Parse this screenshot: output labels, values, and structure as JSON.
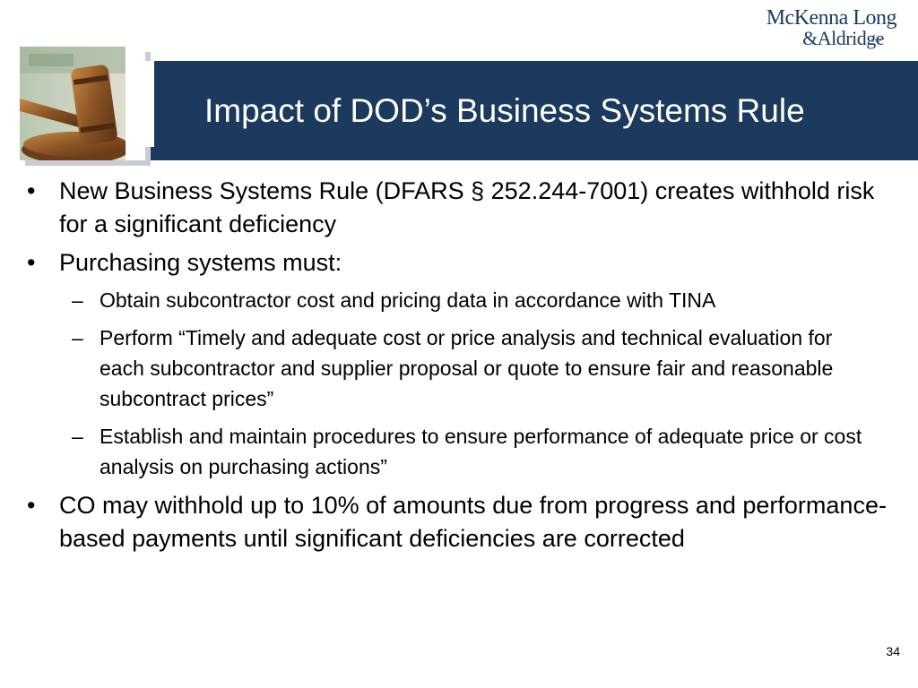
{
  "logo": {
    "line1": "McKenna Long",
    "line2": "&Aldridge",
    "suffix": "LLP"
  },
  "slide": {
    "title": "Impact of DOD’s Business Systems Rule",
    "page_number": "34"
  },
  "bullets": [
    {
      "text": "New Business Systems Rule (DFARS § 252.244-7001) creates withhold risk for a significant deficiency"
    },
    {
      "text": "Purchasing systems must:"
    }
  ],
  "sub_bullets": [
    {
      "text": "Obtain subcontractor cost and pricing data in accordance with TINA"
    },
    {
      "text": "Perform “Timely and adequate cost or price analysis and technical evaluation for each subcontractor and supplier proposal or quote to ensure fair and reasonable subcontract prices”"
    },
    {
      "text": "Establish and maintain procedures to ensure performance of adequate price or cost analysis on purchasing actions”"
    }
  ],
  "final_bullet": {
    "text": "CO may withhold up to 10% of amounts due from progress and performance-based payments until significant deficiencies are corrected"
  },
  "glyphs": {
    "bullet": "•",
    "dash": "–"
  },
  "colors": {
    "header_band": "#1b3a5e",
    "title_text": "#ffffff",
    "logo": "#1b3a5e"
  }
}
